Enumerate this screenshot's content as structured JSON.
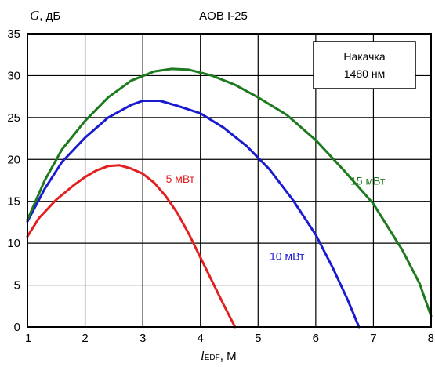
{
  "chart_data": {
    "type": "line",
    "title": "AOB I-25",
    "ylabel": {
      "var": "G",
      "unit": ", дБ"
    },
    "xlabel": {
      "var": "l",
      "sub": "EDF",
      "unit": ", М"
    },
    "xlim": [
      1,
      8
    ],
    "ylim": [
      0,
      35
    ],
    "xticks": [
      1,
      2,
      3,
      4,
      5,
      6,
      7,
      8
    ],
    "yticks": [
      0,
      5,
      10,
      15,
      20,
      25,
      30,
      35
    ],
    "grid": true,
    "legend_box": {
      "line1": "Накачка",
      "line2": "1480 нм"
    },
    "series": [
      {
        "name": "5 мВт",
        "color": "#e32020",
        "points": [
          [
            1.0,
            10.8
          ],
          [
            1.2,
            13.0
          ],
          [
            1.5,
            15.2
          ],
          [
            1.8,
            16.9
          ],
          [
            2.0,
            17.9
          ],
          [
            2.2,
            18.7
          ],
          [
            2.4,
            19.2
          ],
          [
            2.6,
            19.3
          ],
          [
            2.8,
            18.9
          ],
          [
            3.0,
            18.3
          ],
          [
            3.2,
            17.2
          ],
          [
            3.4,
            15.6
          ],
          [
            3.6,
            13.6
          ],
          [
            3.8,
            11.1
          ],
          [
            4.0,
            8.3
          ],
          [
            4.2,
            5.5
          ],
          [
            4.4,
            2.7
          ],
          [
            4.6,
            0.0
          ]
        ]
      },
      {
        "name": "10 мВт",
        "color": "#1a1ad0",
        "points": [
          [
            1.0,
            12.6
          ],
          [
            1.3,
            16.5
          ],
          [
            1.6,
            19.7
          ],
          [
            2.0,
            22.6
          ],
          [
            2.4,
            25.0
          ],
          [
            2.8,
            26.5
          ],
          [
            3.0,
            27.0
          ],
          [
            3.3,
            27.0
          ],
          [
            3.6,
            26.4
          ],
          [
            4.0,
            25.5
          ],
          [
            4.4,
            23.8
          ],
          [
            4.8,
            21.6
          ],
          [
            5.2,
            18.8
          ],
          [
            5.6,
            15.2
          ],
          [
            6.0,
            11.0
          ],
          [
            6.3,
            7.0
          ],
          [
            6.55,
            3.3
          ],
          [
            6.75,
            0.0
          ]
        ]
      },
      {
        "name": "15 мВт",
        "color": "#1e7a1e",
        "points": [
          [
            1.0,
            12.8
          ],
          [
            1.3,
            17.5
          ],
          [
            1.6,
            21.2
          ],
          [
            2.0,
            24.6
          ],
          [
            2.4,
            27.4
          ],
          [
            2.8,
            29.4
          ],
          [
            3.2,
            30.5
          ],
          [
            3.5,
            30.8
          ],
          [
            3.8,
            30.7
          ],
          [
            4.2,
            30.0
          ],
          [
            4.6,
            28.9
          ],
          [
            5.0,
            27.4
          ],
          [
            5.5,
            25.3
          ],
          [
            6.0,
            22.3
          ],
          [
            6.5,
            18.6
          ],
          [
            7.0,
            14.7
          ],
          [
            7.5,
            9.2
          ],
          [
            7.8,
            5.2
          ],
          [
            8.0,
            1.3
          ]
        ]
      }
    ],
    "annotations": [
      {
        "text": "5 мВт",
        "series": 0,
        "x": 3.4,
        "y": 17.2
      },
      {
        "text": "10 мВт",
        "series": 1,
        "x": 5.2,
        "y": 8.0
      },
      {
        "text": "15 мВт",
        "series": 2,
        "x": 6.6,
        "y": 17.0
      }
    ]
  }
}
